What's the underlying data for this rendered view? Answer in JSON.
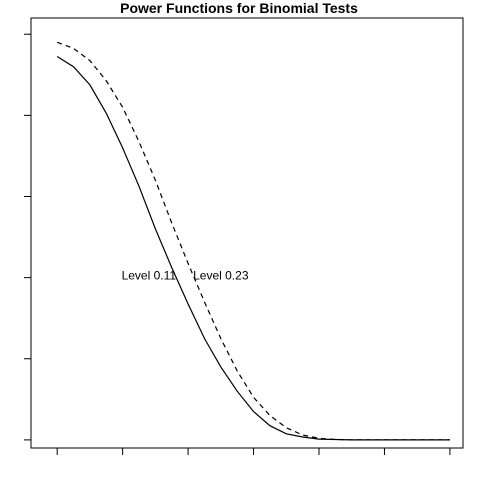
{
  "chart_data": {
    "type": "line",
    "title": "Power Functions for Binomial Tests",
    "xlabel": "",
    "ylabel": "",
    "x_tick_labels": [],
    "y_tick_labels": [],
    "x_ticks": [
      0.0,
      0.1,
      0.2,
      0.3,
      0.4,
      0.5,
      0.6
    ],
    "y_ticks": [
      0.0,
      0.2,
      0.4,
      0.6,
      0.8,
      1.0
    ],
    "xlim": [
      -0.04,
      0.62
    ],
    "ylim": [
      -0.02,
      1.04
    ],
    "grid": false,
    "legend": "none",
    "series": [
      {
        "name": "Level 0.11",
        "style": "solid",
        "color": "#000000",
        "x": [
          0.0,
          0.025,
          0.05,
          0.075,
          0.1,
          0.125,
          0.15,
          0.175,
          0.2,
          0.225,
          0.25,
          0.275,
          0.3,
          0.325,
          0.35,
          0.375,
          0.4,
          0.425,
          0.45,
          0.475,
          0.5,
          0.525,
          0.55,
          0.575,
          0.6
        ],
        "values": [
          0.945,
          0.92,
          0.875,
          0.805,
          0.72,
          0.625,
          0.52,
          0.425,
          0.335,
          0.25,
          0.18,
          0.12,
          0.07,
          0.035,
          0.015,
          0.007,
          0.002,
          0.001,
          0.0,
          0.0,
          0.0,
          0.0,
          0.0,
          0.0,
          0.0
        ]
      },
      {
        "name": "Level 0.23",
        "style": "dashed",
        "color": "#000000",
        "x": [
          0.0,
          0.025,
          0.05,
          0.075,
          0.1,
          0.125,
          0.15,
          0.175,
          0.2,
          0.225,
          0.25,
          0.275,
          0.3,
          0.325,
          0.35,
          0.375,
          0.4,
          0.425,
          0.45,
          0.475,
          0.5,
          0.525,
          0.55,
          0.575,
          0.6
        ],
        "values": [
          0.98,
          0.965,
          0.935,
          0.885,
          0.82,
          0.735,
          0.64,
          0.535,
          0.435,
          0.34,
          0.25,
          0.17,
          0.105,
          0.06,
          0.03,
          0.012,
          0.004,
          0.001,
          0.0,
          0.0,
          0.0,
          0.0,
          0.0,
          0.0,
          0.0
        ]
      }
    ],
    "annotations": [
      {
        "text": "Level 0.11",
        "x": 0.14,
        "y": 0.395
      },
      {
        "text": "Level 0.23",
        "x": 0.25,
        "y": 0.395
      }
    ]
  }
}
